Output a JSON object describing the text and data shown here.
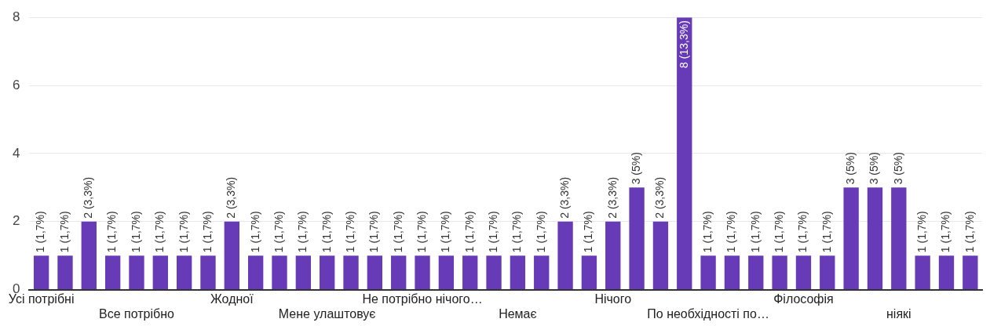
{
  "chart_data": {
    "type": "bar",
    "categories": [
      "Усі потрібні",
      null,
      null,
      null,
      "Все потрібно",
      null,
      null,
      null,
      "Жодної",
      null,
      null,
      null,
      "Мене улаштовує",
      null,
      null,
      null,
      "Не потрібно нічого…",
      null,
      null,
      null,
      "Немає",
      null,
      null,
      null,
      "Нічого",
      null,
      null,
      null,
      "По необхідності по…",
      null,
      null,
      null,
      "Філософія",
      null,
      null,
      null,
      "ніякі",
      null,
      null,
      null
    ],
    "values": [
      1,
      1,
      2,
      1,
      1,
      1,
      1,
      1,
      2,
      1,
      1,
      1,
      1,
      1,
      1,
      1,
      1,
      1,
      1,
      1,
      1,
      1,
      2,
      1,
      2,
      3,
      2,
      8,
      1,
      1,
      1,
      1,
      1,
      1,
      3,
      3,
      3,
      1,
      1,
      1
    ],
    "value_labels": [
      "1 (1,7%)",
      "1 (1,7%)",
      "2 (3,3%)",
      "1 (1,7%)",
      "1 (1,7%)",
      "1 (1,7%)",
      "1 (1,7%)",
      "1 (1,7%)",
      "2 (3,3%)",
      "1 (1,7%)",
      "1 (1,7%)",
      "1 (1,7%)",
      "1 (1,7%)",
      "1 (1,7%)",
      "1 (1,7%)",
      "1 (1,7%)",
      "1 (1,7%)",
      "1 (1,7%)",
      "1 (1,7%)",
      "1 (1,7%)",
      "1 (1,7%)",
      "1 (1,7%)",
      "2 (3,3%)",
      "1 (1,7%)",
      "2 (3,3%)",
      "3 (5%)",
      "2 (3,3%)",
      "8 (13,3%)",
      "1 (1,7%)",
      "1 (1,7%)",
      "1 (1,7%)",
      "1 (1,7%)",
      "1 (1,7%)",
      "1 (1,7%)",
      "3 (5%)",
      "3 (5%)",
      "3 (5%)",
      "1 (1,7%)",
      "1 (1,7%)",
      "1 (1,7%)"
    ],
    "color": "#673ab7",
    "ylim": [
      0,
      8
    ],
    "yticks": [
      0,
      2,
      4,
      6,
      8
    ],
    "grid": "y",
    "legend": false
  }
}
